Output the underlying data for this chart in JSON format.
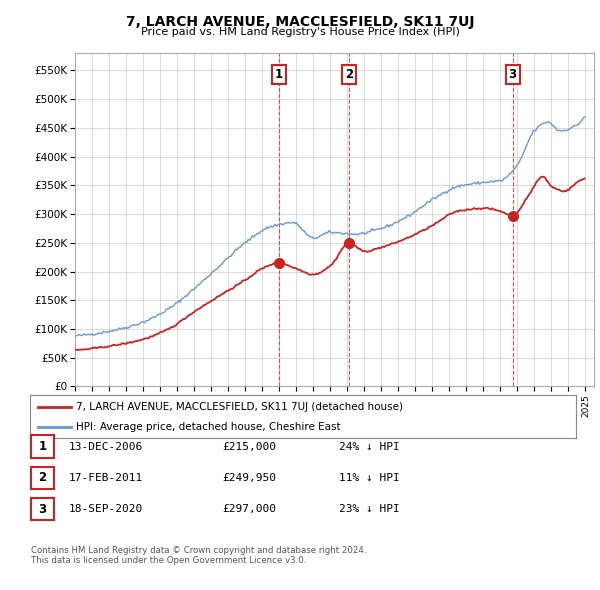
{
  "title": "7, LARCH AVENUE, MACCLESFIELD, SK11 7UJ",
  "subtitle": "Price paid vs. HM Land Registry's House Price Index (HPI)",
  "ylabel_ticks": [
    "£0",
    "£50K",
    "£100K",
    "£150K",
    "£200K",
    "£250K",
    "£300K",
    "£350K",
    "£400K",
    "£450K",
    "£500K",
    "£550K"
  ],
  "ytick_values": [
    0,
    50000,
    100000,
    150000,
    200000,
    250000,
    300000,
    350000,
    400000,
    450000,
    500000,
    550000
  ],
  "ylim": [
    0,
    580000
  ],
  "xlim_start": 1995.0,
  "xlim_end": 2025.5,
  "xtick_years": [
    1995,
    1996,
    1997,
    1998,
    1999,
    2000,
    2001,
    2002,
    2003,
    2004,
    2005,
    2006,
    2007,
    2008,
    2009,
    2010,
    2011,
    2012,
    2013,
    2014,
    2015,
    2016,
    2017,
    2018,
    2019,
    2020,
    2021,
    2022,
    2023,
    2024,
    2025
  ],
  "hpi_color": "#6699cc",
  "price_color": "#cc2222",
  "sales": [
    {
      "label": "1",
      "date": 2006.96,
      "price": 215000
    },
    {
      "label": "2",
      "date": 2011.12,
      "price": 249950
    },
    {
      "label": "3",
      "date": 2020.72,
      "price": 297000
    }
  ],
  "legend_items": [
    {
      "label": "7, LARCH AVENUE, MACCLESFIELD, SK11 7UJ (detached house)",
      "color": "#cc2222"
    },
    {
      "label": "HPI: Average price, detached house, Cheshire East",
      "color": "#6699cc"
    }
  ],
  "table_rows": [
    {
      "num": "1",
      "date": "13-DEC-2006",
      "price": "£215,000",
      "change": "24% ↓ HPI"
    },
    {
      "num": "2",
      "date": "17-FEB-2011",
      "price": "£249,950",
      "change": "11% ↓ HPI"
    },
    {
      "num": "3",
      "date": "18-SEP-2020",
      "price": "£297,000",
      "change": "23% ↓ HPI"
    }
  ],
  "footnote_line1": "Contains HM Land Registry data © Crown copyright and database right 2024.",
  "footnote_line2": "This data is licensed under the Open Government Licence v3.0.",
  "background_color": "#ffffff",
  "plot_bg_color": "#ffffff",
  "grid_color": "#cccccc"
}
